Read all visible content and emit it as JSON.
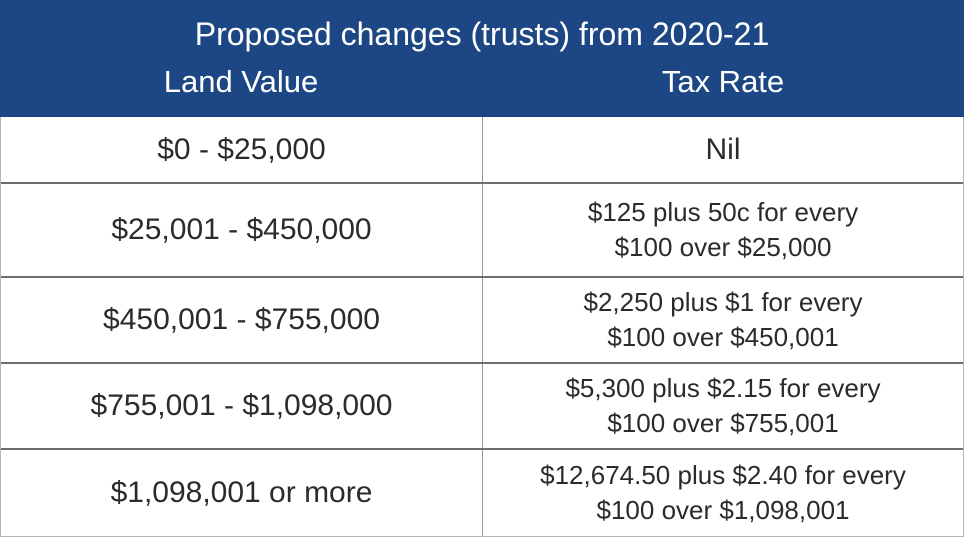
{
  "table": {
    "title": "Proposed changes (trusts) from 2020-21",
    "columns": [
      "Land Value",
      "Tax Rate"
    ],
    "rows": [
      {
        "land": "$0 - $25,000",
        "rate_line1": "Nil",
        "rate_line2": ""
      },
      {
        "land": "$25,001 - $450,000",
        "rate_line1": "$125 plus 50c for every",
        "rate_line2": "$100 over $25,000"
      },
      {
        "land": "$450,001 - $755,000",
        "rate_line1": "$2,250 plus $1 for every",
        "rate_line2": "$100 over $450,001"
      },
      {
        "land": "$755,001 - $1,098,000",
        "rate_line1": "$5,300 plus $2.15 for every",
        "rate_line2": "$100 over $755,001"
      },
      {
        "land": "$1,098,001 or more",
        "rate_line1": "$12,674.50 plus $2.40 for every",
        "rate_line2": "$100 over $1,098,001"
      }
    ]
  },
  "colors": {
    "header_background": "#1d4784",
    "header_text": "#ffffff",
    "body_text": "#2b2b2b",
    "row_divider": "#6f6f6f"
  }
}
